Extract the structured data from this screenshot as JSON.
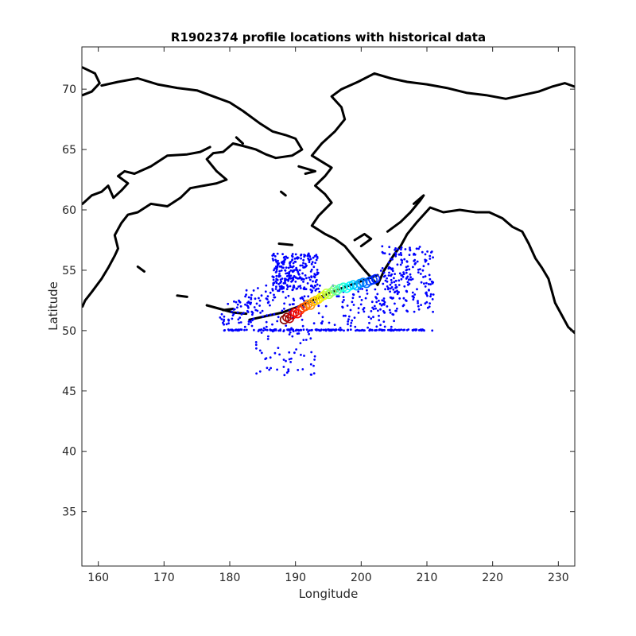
{
  "chart_data": {
    "type": "scatter",
    "title": "R1902374 profile locations with historical data",
    "xlabel": "Longitude",
    "ylabel": "Latitude",
    "xlim": [
      157.5,
      232.5
    ],
    "ylim": [
      30.5,
      73.5
    ],
    "xticks": [
      160,
      170,
      180,
      190,
      200,
      210,
      220,
      230
    ],
    "yticks": [
      35,
      40,
      45,
      50,
      55,
      60,
      65,
      70
    ],
    "grid": false,
    "legend": "none",
    "colors": {
      "historical": "#0000ff",
      "coast": "#000000",
      "axes": "#262626"
    },
    "colormap": "jet",
    "coastlines": [
      [
        [
          157.6,
          71.8
        ],
        [
          159.5,
          71.3
        ],
        [
          160.2,
          70.5
        ],
        [
          159.0,
          69.8
        ],
        [
          157.6,
          69.5
        ]
      ],
      [
        [
          160.5,
          70.3
        ],
        [
          163.0,
          70.6
        ],
        [
          166.0,
          70.9
        ],
        [
          169.0,
          70.4
        ],
        [
          172.0,
          70.1
        ],
        [
          175.0,
          69.9
        ],
        [
          178.0,
          69.3
        ],
        [
          180.0,
          68.9
        ],
        [
          182.0,
          68.2
        ],
        [
          184.5,
          67.2
        ],
        [
          186.5,
          66.5
        ],
        [
          188.5,
          66.2
        ],
        [
          190.0,
          65.9
        ],
        [
          191.0,
          65.0
        ],
        [
          189.5,
          64.5
        ],
        [
          187.0,
          64.3
        ],
        [
          185.5,
          64.6
        ],
        [
          184.0,
          65.0
        ],
        [
          182.0,
          65.3
        ],
        [
          180.5,
          65.5
        ],
        [
          179.0,
          64.8
        ],
        [
          177.5,
          64.7
        ],
        [
          176.5,
          64.2
        ],
        [
          178.0,
          63.2
        ],
        [
          179.5,
          62.5
        ],
        [
          178.0,
          62.2
        ],
        [
          176.0,
          62.0
        ],
        [
          174.0,
          61.8
        ],
        [
          172.5,
          61.0
        ],
        [
          170.5,
          60.3
        ],
        [
          168.0,
          60.5
        ],
        [
          166.0,
          59.8
        ],
        [
          164.5,
          59.6
        ],
        [
          163.5,
          58.9
        ],
        [
          162.5,
          57.9
        ],
        [
          163.0,
          56.8
        ],
        [
          162.5,
          56.2
        ],
        [
          161.5,
          55.2
        ],
        [
          160.5,
          54.3
        ],
        [
          159.0,
          53.2
        ],
        [
          158.0,
          52.5
        ],
        [
          157.6,
          52.0
        ]
      ],
      [
        [
          157.6,
          60.5
        ],
        [
          159.0,
          61.2
        ],
        [
          160.5,
          61.5
        ],
        [
          161.5,
          62.0
        ],
        [
          162.3,
          61.0
        ],
        [
          163.5,
          61.6
        ],
        [
          164.5,
          62.2
        ],
        [
          163.0,
          62.8
        ],
        [
          164.0,
          63.2
        ],
        [
          165.5,
          63.0
        ],
        [
          168.0,
          63.6
        ],
        [
          170.5,
          64.5
        ],
        [
          173.5,
          64.6
        ],
        [
          175.5,
          64.8
        ],
        [
          177.0,
          65.2
        ]
      ],
      [
        [
          202.5,
          53.8
        ],
        [
          203.5,
          55.0
        ],
        [
          205.0,
          56.3
        ],
        [
          206.0,
          57.0
        ],
        [
          207.0,
          58.0
        ],
        [
          208.5,
          59.0
        ],
        [
          210.5,
          60.2
        ],
        [
          212.5,
          59.8
        ],
        [
          215.0,
          60.0
        ],
        [
          217.5,
          59.8
        ],
        [
          219.5,
          59.8
        ],
        [
          221.5,
          59.3
        ],
        [
          223.0,
          58.6
        ],
        [
          224.5,
          58.2
        ],
        [
          225.5,
          57.2
        ],
        [
          226.5,
          56.0
        ],
        [
          227.5,
          55.2
        ],
        [
          228.5,
          54.3
        ],
        [
          229.0,
          53.3
        ],
        [
          229.5,
          52.3
        ],
        [
          230.5,
          51.3
        ],
        [
          231.5,
          50.3
        ],
        [
          232.5,
          49.8
        ]
      ],
      [
        [
          202.5,
          53.8
        ],
        [
          200.5,
          55.0
        ],
        [
          199.0,
          56.0
        ],
        [
          197.5,
          57.0
        ],
        [
          196.0,
          57.6
        ],
        [
          194.5,
          58.0
        ],
        [
          192.5,
          58.7
        ],
        [
          193.5,
          59.5
        ],
        [
          195.5,
          60.6
        ],
        [
          194.5,
          61.3
        ],
        [
          193.0,
          62.0
        ],
        [
          194.5,
          62.8
        ],
        [
          195.5,
          63.5
        ],
        [
          194.0,
          64.0
        ],
        [
          192.5,
          64.5
        ],
        [
          194.0,
          65.5
        ],
        [
          196.0,
          66.5
        ],
        [
          197.5,
          67.5
        ],
        [
          197.0,
          68.5
        ],
        [
          195.5,
          69.4
        ],
        [
          197.0,
          70.0
        ],
        [
          199.5,
          70.6
        ],
        [
          202.0,
          71.3
        ],
        [
          204.5,
          70.9
        ],
        [
          207.0,
          70.6
        ],
        [
          210.0,
          70.4
        ],
        [
          213.0,
          70.1
        ],
        [
          216.0,
          69.7
        ],
        [
          219.0,
          69.5
        ],
        [
          222.0,
          69.2
        ],
        [
          224.5,
          69.5
        ],
        [
          227.0,
          69.8
        ],
        [
          229.0,
          70.2
        ],
        [
          231.0,
          70.5
        ],
        [
          232.5,
          70.2
        ]
      ],
      [
        [
          204.0,
          58.2
        ],
        [
          206.0,
          59.0
        ],
        [
          207.5,
          59.8
        ],
        [
          209.0,
          60.8
        ],
        [
          209.5,
          61.2
        ],
        [
          208.0,
          60.5
        ]
      ],
      [
        [
          183.0,
          50.9
        ],
        [
          185.5,
          51.2
        ],
        [
          188.0,
          51.5
        ],
        [
          190.5,
          52.0
        ],
        [
          193.0,
          52.6
        ],
        [
          195.5,
          53.2
        ],
        [
          198.0,
          53.7
        ],
        [
          200.5,
          54.2
        ],
        [
          202.5,
          54.6
        ]
      ],
      [
        [
          176.5,
          52.1
        ],
        [
          178.5,
          51.8
        ],
        [
          180.5,
          51.5
        ],
        [
          182.5,
          51.4
        ]
      ],
      [
        [
          179.0,
          51.7
        ],
        [
          180.5,
          51.8
        ]
      ],
      [
        [
          172.0,
          52.9
        ],
        [
          173.5,
          52.8
        ]
      ],
      [
        [
          166.0,
          55.3
        ],
        [
          167.0,
          54.9
        ]
      ],
      [
        [
          187.5,
          57.2
        ],
        [
          189.5,
          57.1
        ]
      ],
      [
        [
          190.5,
          63.6
        ],
        [
          193.0,
          63.2
        ],
        [
          191.5,
          63.0
        ]
      ],
      [
        [
          187.8,
          61.5
        ],
        [
          188.5,
          61.2
        ]
      ],
      [
        [
          182.0,
          65.5
        ],
        [
          181.0,
          66.0
        ]
      ],
      [
        [
          199.0,
          57.5
        ],
        [
          200.5,
          58.0
        ],
        [
          201.5,
          57.6
        ],
        [
          200.0,
          57.0
        ]
      ]
    ],
    "historical": {
      "clusters": [
        {
          "count": 260,
          "lon": [
            186.5,
            193.5
          ],
          "lat": [
            53.3,
            56.4
          ]
        },
        {
          "count": 170,
          "lon": [
            179.0,
            211.0
          ],
          "lat": [
            50.0,
            50.1
          ]
        },
        {
          "count": 200,
          "lon": [
            182.0,
            206.0
          ],
          "lat": [
            50.2,
            53.8
          ]
        },
        {
          "count": 200,
          "lon": [
            203.0,
            211.0
          ],
          "lat": [
            51.5,
            57.0
          ]
        },
        {
          "count": 60,
          "lon": [
            184.0,
            193.0
          ],
          "lat": [
            46.3,
            50.0
          ]
        },
        {
          "count": 40,
          "lon": [
            178.5,
            183.0
          ],
          "lat": [
            50.5,
            52.5
          ]
        }
      ]
    },
    "profiles": [
      {
        "lon": 188.3,
        "lat": 50.9
      },
      {
        "lon": 188.7,
        "lat": 51.1
      },
      {
        "lon": 189.1,
        "lat": 51.0
      },
      {
        "lon": 189.5,
        "lat": 51.3
      },
      {
        "lon": 189.9,
        "lat": 51.5
      },
      {
        "lon": 190.3,
        "lat": 51.4
      },
      {
        "lon": 190.7,
        "lat": 51.7
      },
      {
        "lon": 191.1,
        "lat": 51.9
      },
      {
        "lon": 191.5,
        "lat": 52.0
      },
      {
        "lon": 191.9,
        "lat": 52.2
      },
      {
        "lon": 192.3,
        "lat": 52.1
      },
      {
        "lon": 192.7,
        "lat": 52.4
      },
      {
        "lon": 193.1,
        "lat": 52.5
      },
      {
        "lon": 193.5,
        "lat": 52.6
      },
      {
        "lon": 193.9,
        "lat": 52.8
      },
      {
        "lon": 194.3,
        "lat": 52.9
      },
      {
        "lon": 194.7,
        "lat": 53.1
      },
      {
        "lon": 195.1,
        "lat": 53.0
      },
      {
        "lon": 195.5,
        "lat": 53.2
      },
      {
        "lon": 195.9,
        "lat": 53.4
      },
      {
        "lon": 196.3,
        "lat": 53.3
      },
      {
        "lon": 196.8,
        "lat": 53.5
      },
      {
        "lon": 197.3,
        "lat": 53.6
      },
      {
        "lon": 197.8,
        "lat": 53.5
      },
      {
        "lon": 198.3,
        "lat": 53.7
      },
      {
        "lon": 198.8,
        "lat": 53.8
      },
      {
        "lon": 199.3,
        "lat": 53.7
      },
      {
        "lon": 199.8,
        "lat": 53.9
      },
      {
        "lon": 200.3,
        "lat": 54.0
      },
      {
        "lon": 200.8,
        "lat": 53.9
      },
      {
        "lon": 201.3,
        "lat": 54.1
      },
      {
        "lon": 201.8,
        "lat": 54.2
      },
      {
        "lon": 202.2,
        "lat": 54.3
      }
    ]
  }
}
